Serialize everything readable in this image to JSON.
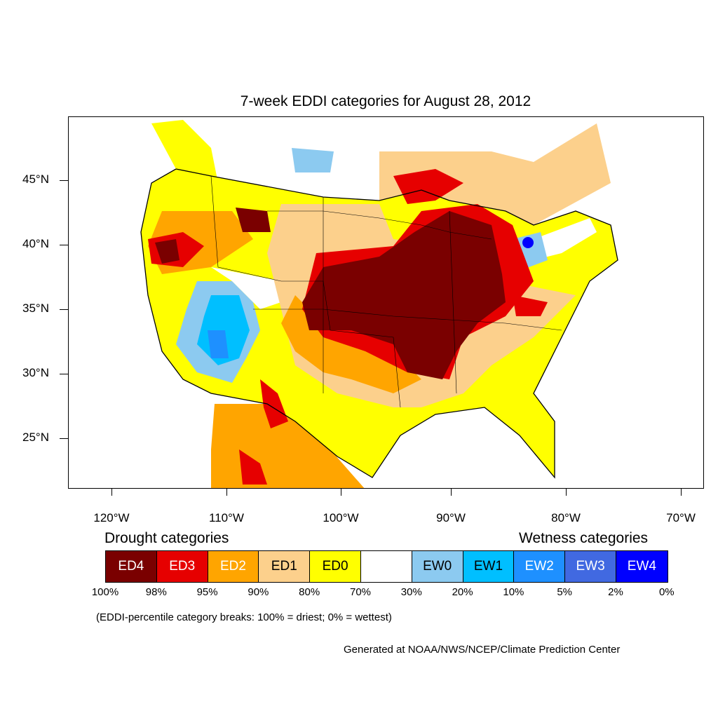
{
  "title": "7-week EDDI categories for August 28, 2012",
  "lat_labels": [
    "45°N",
    "40°N",
    "35°N",
    "30°N",
    "25°N"
  ],
  "lon_labels": [
    "120°W",
    "110°W",
    "100°W",
    "90°W",
    "80°W",
    "70°W"
  ],
  "legend": {
    "drought_heading": "Drought categories",
    "wetness_heading": "Wetness categories",
    "categories": [
      {
        "label": "ED4",
        "color": "#7a0000",
        "text_color": "#ffffff"
      },
      {
        "label": "ED3",
        "color": "#e60000",
        "text_color": "#ffffff"
      },
      {
        "label": "ED2",
        "color": "#ffa500",
        "text_color": "#ffffff"
      },
      {
        "label": "ED1",
        "color": "#fcd08c",
        "text_color": "#000000"
      },
      {
        "label": "ED0",
        "color": "#ffff00",
        "text_color": "#000000"
      },
      {
        "label": "",
        "color": "#ffffff",
        "text_color": "#000000"
      },
      {
        "label": "EW0",
        "color": "#8ccaf0",
        "text_color": "#000000"
      },
      {
        "label": "EW1",
        "color": "#00bfff",
        "text_color": "#000000"
      },
      {
        "label": "EW2",
        "color": "#1e90ff",
        "text_color": "#ffffff"
      },
      {
        "label": "EW3",
        "color": "#4169e1",
        "text_color": "#ffffff"
      },
      {
        "label": "EW4",
        "color": "#0000ff",
        "text_color": "#ffffff"
      }
    ],
    "breaks": [
      "100%",
      "98%",
      "95%",
      "90%",
      "80%",
      "70%",
      "30%",
      "20%",
      "10%",
      "5%",
      "2%",
      "0%"
    ]
  },
  "note": "(EDDI-percentile category breaks: 100% = driest; 0% = wettest)",
  "credit": "Generated at NOAA/NWS/NCEP/Climate Prediction Center"
}
